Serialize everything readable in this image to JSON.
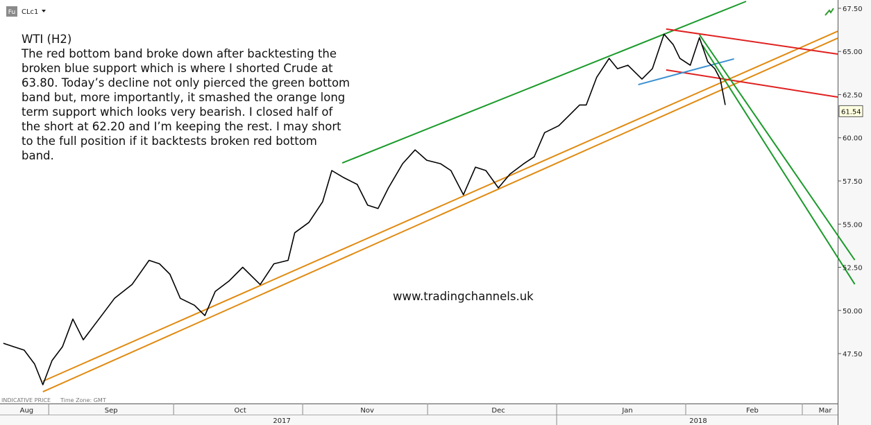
{
  "header": {
    "badge": "Fu",
    "symbol": "CLc1"
  },
  "chart_data": {
    "type": "line",
    "title": "WTI (H2)",
    "annotation_lines": [
      "The red bottom band broke down after backtesting the",
      "broken blue support which is where I shorted Crude at",
      "63.80. Today’s decline not only pierced the green bottom",
      "band but, more importantly, it smashed the orange long",
      "term support which looks very bearish. I closed half of",
      "the short at 62.20 and I’m keeping the rest. I may short",
      "to the full position if it backtests broken red bottom",
      "band."
    ],
    "watermark": "www.tradingchannels.uk",
    "footer_label": "INDICATIVE PRICE",
    "timezone": "Time Zone: GMT",
    "color": "#000000",
    "x": [
      20.1,
      22.6,
      25.1,
      27.6,
      29.6,
      31.8,
      34.3,
      36.8,
      39.3,
      41.8,
      44.3,
      46.8,
      51.0,
      55.1,
      57.6,
      60.1,
      62.6,
      66.0,
      68.5,
      71.0,
      74.3,
      77.6,
      81.8,
      85.1,
      88.5,
      90.1,
      93.5,
      96.8,
      99.0,
      101.8,
      105.1,
      107.6,
      110.1,
      112.6,
      116.0,
      119.0,
      121.8,
      125.1,
      127.6,
      130.6,
      133.5,
      136.0,
      139.0,
      141.8,
      145.1,
      147.6,
      150.1,
      153.5,
      156.0,
      158.5,
      160.1,
      162.6,
      165.6,
      167.6,
      170.1,
      173.5,
      176.0,
      178.8,
      181.0,
      182.6,
      185.1,
      187.3,
      189.3,
      191.0,
      192.3,
      193.5
    ],
    "values": [
      48.1,
      47.9,
      47.7,
      46.9,
      45.7,
      47.1,
      47.9,
      49.5,
      48.3,
      49.1,
      49.9,
      50.7,
      51.5,
      52.9,
      52.7,
      52.1,
      50.7,
      50.3,
      49.7,
      51.1,
      51.7,
      52.5,
      51.5,
      52.7,
      52.9,
      54.5,
      55.1,
      56.3,
      58.1,
      57.7,
      57.3,
      56.1,
      55.9,
      57.1,
      58.5,
      59.3,
      58.7,
      58.5,
      58.1,
      56.7,
      58.3,
      58.1,
      57.1,
      57.9,
      58.5,
      58.9,
      60.3,
      60.7,
      61.3,
      61.9,
      61.9,
      63.5,
      64.6,
      64.0,
      64.2,
      63.4,
      64.0,
      66.0,
      65.4,
      64.6,
      64.2,
      65.8,
      64.4,
      64.0,
      63.4,
      61.9
    ],
    "last_price": 61.54,
    "lines": [
      {
        "color": "#1a9a2a",
        "x": [
          101.5,
          198.5
        ],
        "y": [
          58.54,
          67.9
        ]
      },
      {
        "color": "#e08a10",
        "x": [
          29.6,
          220.5
        ],
        "y": [
          45.29,
          65.77
        ]
      },
      {
        "color": "#e08a10",
        "x": [
          29.6,
          220.5
        ],
        "y": [
          45.9,
          66.17
        ]
      },
      {
        "color": "#e02020",
        "x": [
          179.3,
          220.5
        ],
        "y": [
          66.3,
          64.85
        ]
      },
      {
        "color": "#e02020",
        "x": [
          179.3,
          220.5
        ],
        "y": [
          63.93,
          62.36
        ]
      },
      {
        "color": "#3a8fd0",
        "x": [
          172.6,
          195.6
        ],
        "y": [
          63.08,
          64.57
        ]
      },
      {
        "color": "#1a9a2a",
        "x": [
          187.3,
          224.6
        ],
        "y": [
          65.97,
          52.92
        ]
      },
      {
        "color": "#1a9a2a",
        "x": [
          188.0,
          224.6
        ],
        "y": [
          65.37,
          51.52
        ]
      }
    ],
    "xlim": [
      19.3,
      220.5
    ],
    "ylim": [
      44.61,
      67.98
    ],
    "yticks": [
      {
        "value": 47.5,
        "label": "47.50"
      },
      {
        "value": 50,
        "label": "50.00"
      },
      {
        "value": 52.5,
        "label": "52.50"
      },
      {
        "value": 55,
        "label": "55.00"
      },
      {
        "value": 57.5,
        "label": "57.50"
      },
      {
        "value": 60,
        "label": "60.00"
      },
      {
        "value": 62.5,
        "label": "62.50"
      },
      {
        "value": 65,
        "label": "65.00"
      },
      {
        "value": 67.5,
        "label": "67.50"
      }
    ],
    "month_bounds": [
      31,
      61,
      92,
      122,
      153,
      184,
      212
    ],
    "month_labels": [
      {
        "value": 25.7,
        "label": "Aug"
      },
      {
        "value": 46,
        "label": "Sep"
      },
      {
        "value": 77,
        "label": "Oct"
      },
      {
        "value": 107.5,
        "label": "Nov"
      },
      {
        "value": 139,
        "label": "Dec"
      },
      {
        "value": 170,
        "label": "Jan"
      },
      {
        "value": 200,
        "label": "Feb"
      },
      {
        "value": 217.5,
        "label": "Mar"
      }
    ],
    "year_bounds": [
      153
    ],
    "year_labels": [
      {
        "value": 87,
        "label": "2017"
      },
      {
        "value": 187,
        "label": "2018"
      }
    ]
  }
}
